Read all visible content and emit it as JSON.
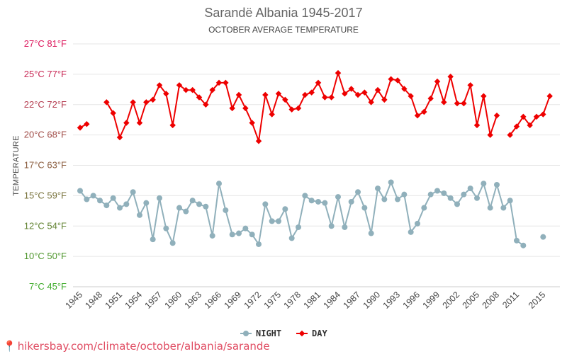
{
  "chart_data": {
    "type": "line",
    "title": "Sarandë Albania 1945-2017",
    "subtitle": "OCTOBER AVERAGE TEMPERATURE",
    "ylabel": "TEMPERATURE",
    "ylim": [
      7,
      27
    ],
    "y_ticks": [
      {
        "value": 27,
        "label": "27°C 81°F"
      },
      {
        "value": 24.5,
        "label": "25°C 77°F"
      },
      {
        "value": 22,
        "label": "22°C 72°F"
      },
      {
        "value": 19.5,
        "label": "20°C 68°F"
      },
      {
        "value": 17,
        "label": "17°C 63°F"
      },
      {
        "value": 14.5,
        "label": "15°C 59°F"
      },
      {
        "value": 12,
        "label": "12°C 54°F"
      },
      {
        "value": 9.5,
        "label": "10°C 50°F"
      },
      {
        "value": 7,
        "label": "7°C 45°F"
      }
    ],
    "x_ticks": [
      1945,
      1948,
      1951,
      1954,
      1957,
      1960,
      1963,
      1966,
      1969,
      1972,
      1975,
      1978,
      1981,
      1984,
      1987,
      1990,
      1993,
      1996,
      1999,
      2002,
      2005,
      2008,
      2011,
      2015
    ],
    "x": [
      1945,
      1946,
      1947,
      1948,
      1949,
      1950,
      1951,
      1952,
      1953,
      1954,
      1955,
      1956,
      1957,
      1958,
      1959,
      1960,
      1961,
      1962,
      1963,
      1964,
      1965,
      1966,
      1967,
      1968,
      1969,
      1970,
      1971,
      1972,
      1973,
      1974,
      1975,
      1976,
      1977,
      1978,
      1979,
      1980,
      1981,
      1982,
      1983,
      1984,
      1985,
      1986,
      1987,
      1988,
      1989,
      1990,
      1991,
      1992,
      1993,
      1994,
      1995,
      1996,
      1997,
      1998,
      1999,
      2000,
      2001,
      2002,
      2003,
      2004,
      2005,
      2006,
      2007,
      2008,
      2009,
      2010,
      2011,
      2012,
      2013,
      2014,
      2015,
      2016,
      2017
    ],
    "series": [
      {
        "name": "NIGHT",
        "color": "#90b0bb",
        "values": [
          14.9,
          14.2,
          14.5,
          14.1,
          13.7,
          14.3,
          13.5,
          13.8,
          14.8,
          12.9,
          13.9,
          10.9,
          14.3,
          11.8,
          10.6,
          13.5,
          13.2,
          14.1,
          13.8,
          13.6,
          11.2,
          15.5,
          13.3,
          11.3,
          11.4,
          11.8,
          11.3,
          10.5,
          13.8,
          12.4,
          12.4,
          13.4,
          11.0,
          11.9,
          14.5,
          14.1,
          14.0,
          13.9,
          12.0,
          14.4,
          11.9,
          14.0,
          14.8,
          13.5,
          11.4,
          15.1,
          14.2,
          15.6,
          14.2,
          14.6,
          11.5,
          12.2,
          13.5,
          14.6,
          14.9,
          14.7,
          14.3,
          13.8,
          14.6,
          15.1,
          14.3,
          15.5,
          13.5,
          15.4,
          13.5,
          14.1,
          10.8,
          10.4,
          null,
          null,
          11.1,
          null,
          null
        ]
      },
      {
        "name": "DAY",
        "color": "#ee0000",
        "values": [
          20.1,
          20.4,
          null,
          null,
          22.2,
          21.3,
          19.3,
          20.5,
          22.2,
          20.5,
          22.2,
          22.4,
          23.6,
          22.9,
          20.3,
          23.6,
          23.2,
          23.2,
          22.6,
          22.0,
          23.2,
          23.8,
          23.8,
          21.7,
          22.8,
          21.7,
          20.5,
          19.0,
          22.8,
          21.2,
          22.9,
          22.4,
          21.6,
          21.7,
          22.8,
          23.0,
          23.8,
          22.6,
          22.6,
          24.6,
          22.9,
          23.3,
          22.8,
          23.0,
          22.2,
          23.2,
          22.4,
          24.1,
          24.0,
          23.3,
          22.7,
          21.1,
          21.4,
          22.5,
          23.9,
          22.2,
          24.3,
          22.1,
          22.1,
          23.6,
          20.3,
          22.7,
          19.5,
          21.1,
          null,
          19.5,
          20.2,
          21.0,
          20.3,
          21.0,
          21.2,
          22.7,
          null
        ]
      }
    ],
    "legend": [
      {
        "label": "NIGHT",
        "color": "#90b0bb"
      },
      {
        "label": "DAY",
        "color": "#ee0000"
      }
    ],
    "legend_position": "bottom",
    "grid": true
  },
  "footer": {
    "url": "hikersbay.com/climate/october/albania/sarande"
  }
}
